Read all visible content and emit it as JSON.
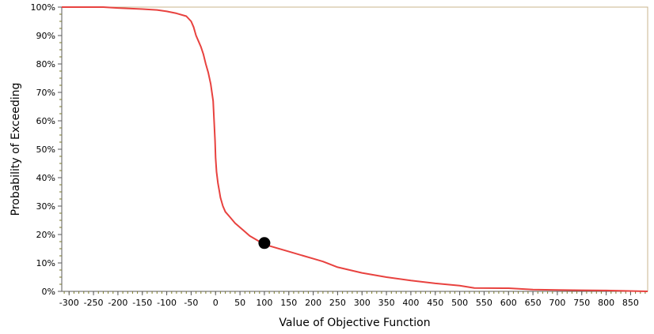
{
  "chart_data": {
    "type": "line",
    "xlabel": "Value of Objective Function",
    "ylabel": "Probability of Exceeding",
    "xlim": [
      -315,
      885
    ],
    "ylim": [
      0,
      100
    ],
    "x_ticks": [
      -300,
      -250,
      -200,
      -150,
      -100,
      -50,
      0,
      50,
      100,
      150,
      200,
      250,
      300,
      350,
      400,
      450,
      500,
      550,
      600,
      650,
      700,
      750,
      800,
      850
    ],
    "y_ticks": [
      0,
      10,
      20,
      30,
      40,
      50,
      60,
      70,
      80,
      90,
      100
    ],
    "y_tick_labels": [
      "0%",
      "10%",
      "20%",
      "30%",
      "40%",
      "50%",
      "60%",
      "70%",
      "80%",
      "90%",
      "100%"
    ],
    "grid": false,
    "series": [
      {
        "color": "#e8423f",
        "x": [
          -315,
          -230,
          -200,
          -150,
          -120,
          -100,
          -80,
          -60,
          -50,
          -45,
          -40,
          -35,
          -30,
          -25,
          -20,
          -15,
          -10,
          -5,
          -3,
          -1,
          0,
          2,
          5,
          8,
          10,
          15,
          20,
          30,
          40,
          50,
          60,
          70,
          80,
          90,
          100,
          120,
          150,
          180,
          200,
          220,
          250,
          300,
          350,
          400,
          450,
          500,
          530,
          600,
          650,
          700,
          750,
          800,
          885
        ],
        "y": [
          100,
          100,
          99.7,
          99.3,
          99,
          98.5,
          97.8,
          96.8,
          95,
          93,
          90,
          88,
          86,
          83.5,
          80,
          77,
          73,
          67,
          60,
          53,
          47,
          42,
          38,
          35,
          33,
          30,
          28,
          26,
          24,
          22.5,
          21,
          19.5,
          18.5,
          17.5,
          16.5,
          15.5,
          14,
          12.5,
          11.5,
          10.5,
          8.5,
          6.5,
          5,
          3.8,
          2.8,
          2,
          1.2,
          1.1,
          0.6,
          0.5,
          0.4,
          0.3,
          0
        ]
      }
    ],
    "marker": {
      "x": 100,
      "y": 17,
      "color": "#000000"
    }
  }
}
